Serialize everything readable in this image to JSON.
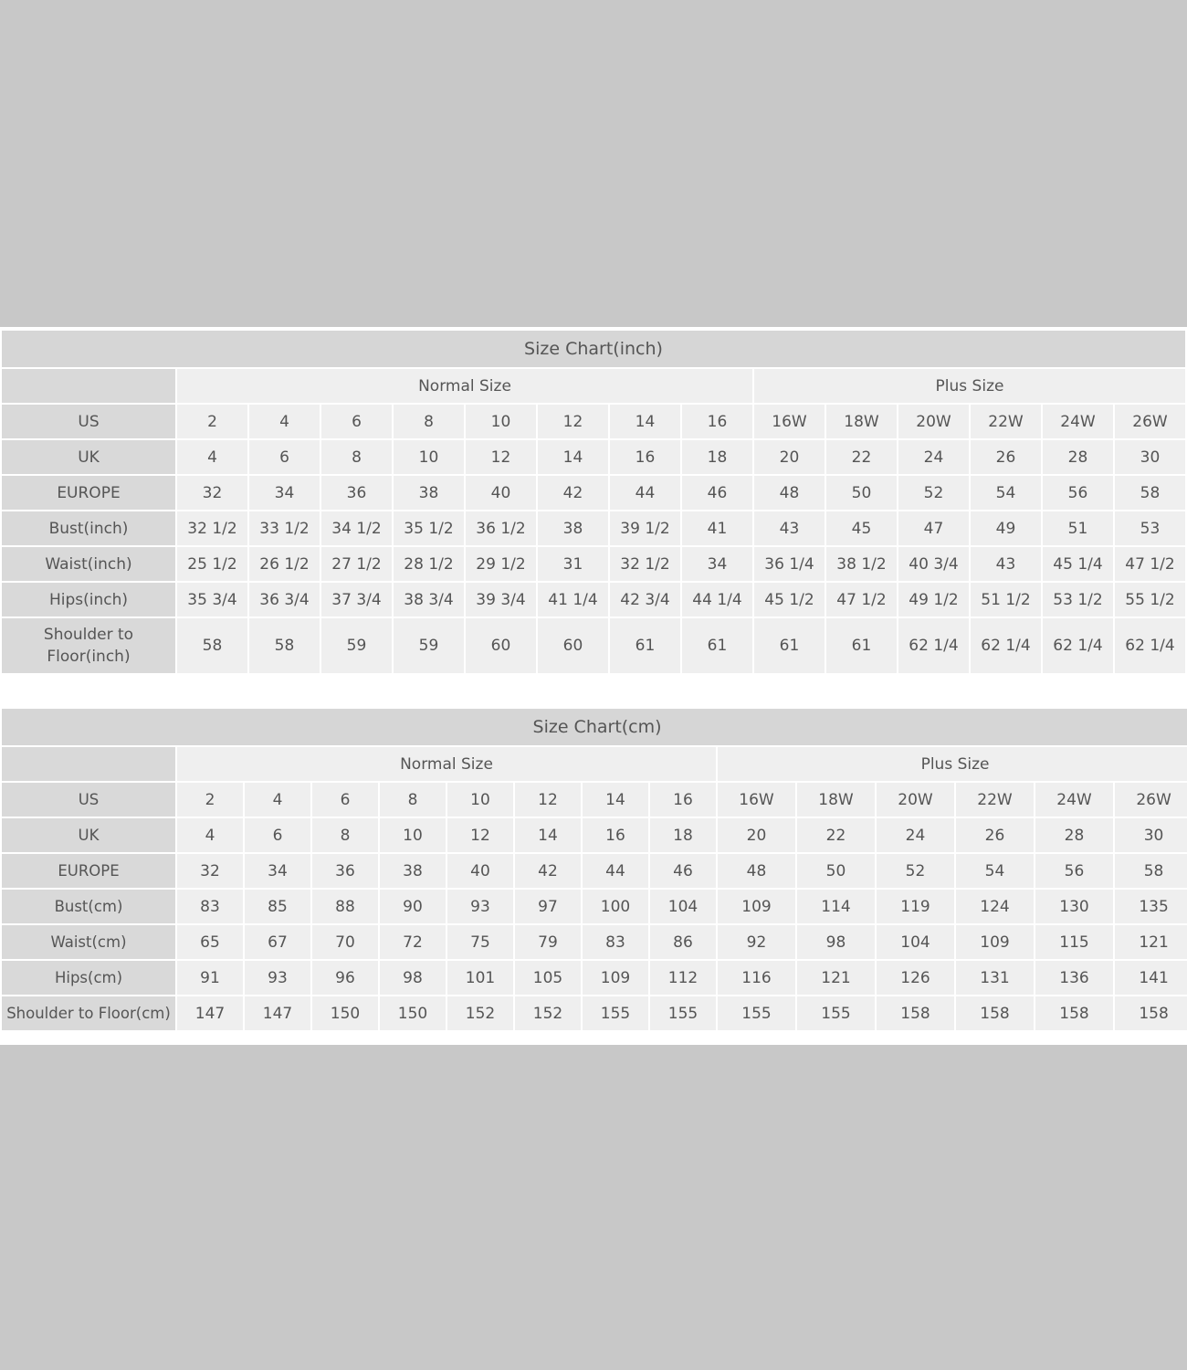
{
  "tables": [
    {
      "title": "Size Chart(inch)",
      "groups": [
        "Normal Size",
        "Plus Size"
      ],
      "rows": [
        {
          "label": "US",
          "cells": [
            "2",
            "4",
            "6",
            "8",
            "10",
            "12",
            "14",
            "16",
            "16W",
            "18W",
            "20W",
            "22W",
            "24W",
            "26W"
          ]
        },
        {
          "label": "UK",
          "cells": [
            "4",
            "6",
            "8",
            "10",
            "12",
            "14",
            "16",
            "18",
            "20",
            "22",
            "24",
            "26",
            "28",
            "30"
          ]
        },
        {
          "label": "EUROPE",
          "cells": [
            "32",
            "34",
            "36",
            "38",
            "40",
            "42",
            "44",
            "46",
            "48",
            "50",
            "52",
            "54",
            "56",
            "58"
          ]
        },
        {
          "label": "Bust(inch)",
          "cells": [
            "32 1/2",
            "33 1/2",
            "34 1/2",
            "35 1/2",
            "36 1/2",
            "38",
            "39 1/2",
            "41",
            "43",
            "45",
            "47",
            "49",
            "51",
            "53"
          ]
        },
        {
          "label": "Waist(inch)",
          "cells": [
            "25 1/2",
            "26 1/2",
            "27 1/2",
            "28 1/2",
            "29 1/2",
            "31",
            "32 1/2",
            "34",
            "36 1/4",
            "38 1/2",
            "40 3/4",
            "43",
            "45 1/4",
            "47 1/2"
          ]
        },
        {
          "label": "Hips(inch)",
          "cells": [
            "35 3/4",
            "36 3/4",
            "37 3/4",
            "38 3/4",
            "39 3/4",
            "41 1/4",
            "42 3/4",
            "44 1/4",
            "45 1/2",
            "47 1/2",
            "49 1/2",
            "51 1/2",
            "53 1/2",
            "55 1/2"
          ]
        },
        {
          "label": "Shoulder to Floor(inch)",
          "cells": [
            "58",
            "58",
            "59",
            "59",
            "60",
            "60",
            "61",
            "61",
            "61",
            "61",
            "62 1/4",
            "62 1/4",
            "62 1/4",
            "62 1/4"
          ]
        }
      ]
    },
    {
      "title": "Size Chart(cm)",
      "groups": [
        "Normal Size",
        "Plus Size"
      ],
      "rows": [
        {
          "label": "US",
          "cells": [
            "2",
            "4",
            "6",
            "8",
            "10",
            "12",
            "14",
            "16",
            "16W",
            "18W",
            "20W",
            "22W",
            "24W",
            "26W"
          ]
        },
        {
          "label": "UK",
          "cells": [
            "4",
            "6",
            "8",
            "10",
            "12",
            "14",
            "16",
            "18",
            "20",
            "22",
            "24",
            "26",
            "28",
            "30"
          ]
        },
        {
          "label": "EUROPE",
          "cells": [
            "32",
            "34",
            "36",
            "38",
            "40",
            "42",
            "44",
            "46",
            "48",
            "50",
            "52",
            "54",
            "56",
            "58"
          ]
        },
        {
          "label": "Bust(cm)",
          "cells": [
            "83",
            "85",
            "88",
            "90",
            "93",
            "97",
            "100",
            "104",
            "109",
            "114",
            "119",
            "124",
            "130",
            "135"
          ]
        },
        {
          "label": "Waist(cm)",
          "cells": [
            "65",
            "67",
            "70",
            "72",
            "75",
            "79",
            "83",
            "86",
            "92",
            "98",
            "104",
            "109",
            "115",
            "121"
          ]
        },
        {
          "label": "Hips(cm)",
          "cells": [
            "91",
            "93",
            "96",
            "98",
            "101",
            "105",
            "109",
            "112",
            "116",
            "121",
            "126",
            "131",
            "136",
            "141"
          ]
        },
        {
          "label": "Shoulder to Floor(cm)",
          "cells": [
            "147",
            "147",
            "150",
            "150",
            "152",
            "152",
            "155",
            "155",
            "155",
            "155",
            "158",
            "158",
            "158",
            "158"
          ]
        }
      ]
    }
  ]
}
